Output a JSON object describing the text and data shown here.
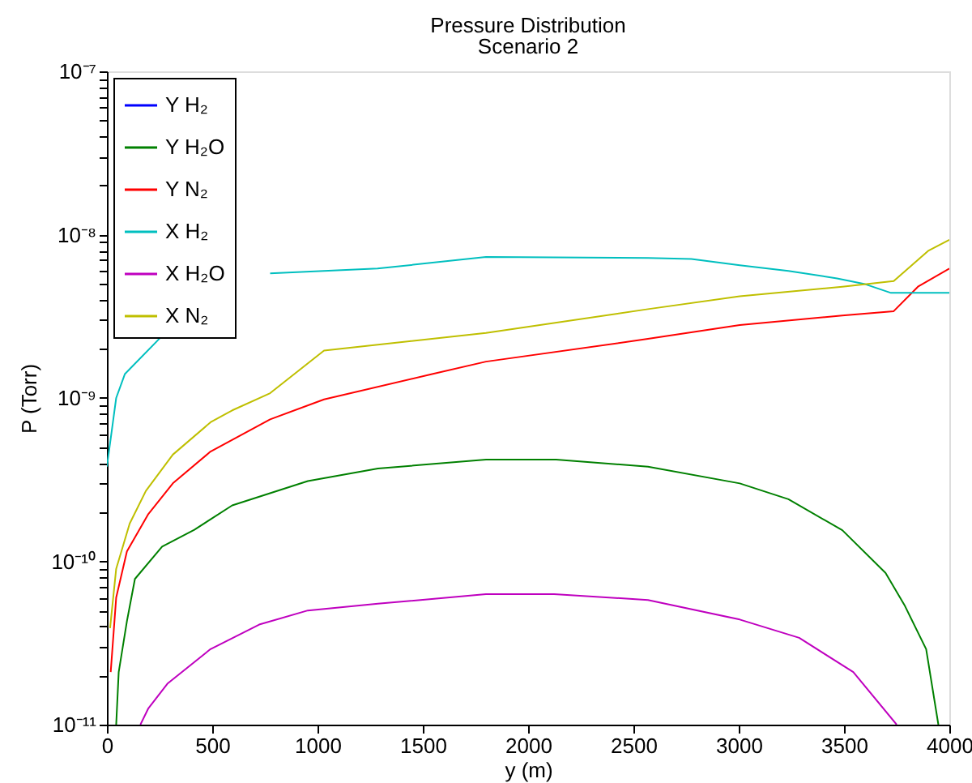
{
  "chart_data": {
    "type": "line",
    "title": "Pressure Distribution",
    "subtitle": "Scenario 2",
    "xlabel": "y (m)",
    "ylabel": "P (Torr)",
    "log": "y",
    "grid": false,
    "legend": "top left",
    "xlim": [
      0,
      4000
    ],
    "xticks": [
      0,
      500,
      1000,
      1500,
      2000,
      2500,
      3000,
      3500,
      4000
    ],
    "ylim": [
      1e-11,
      1e-07
    ],
    "yticks": [
      {
        "value": 1e-11,
        "label": "10⁻¹¹"
      },
      {
        "value": 2e-11,
        "label": null
      },
      {
        "value": 3e-11,
        "label": null
      },
      {
        "value": 4e-11,
        "label": null
      },
      {
        "value": 5e-11,
        "label": null
      },
      {
        "value": 6e-11,
        "label": null
      },
      {
        "value": 7e-11,
        "label": null
      },
      {
        "value": 8e-11,
        "label": null
      },
      {
        "value": 9e-11,
        "label": null
      },
      {
        "value": 1e-10,
        "label": "10⁻¹⁰"
      },
      {
        "value": 2e-10,
        "label": null
      },
      {
        "value": 3e-10,
        "label": null
      },
      {
        "value": 4e-10,
        "label": null
      },
      {
        "value": 5e-10,
        "label": null
      },
      {
        "value": 6e-10,
        "label": null
      },
      {
        "value": 7e-10,
        "label": null
      },
      {
        "value": 8e-10,
        "label": null
      },
      {
        "value": 9e-10,
        "label": null
      },
      {
        "value": 1e-09,
        "label": "10⁻⁹"
      },
      {
        "value": 2e-09,
        "label": null
      },
      {
        "value": 3e-09,
        "label": null
      },
      {
        "value": 4e-09,
        "label": null
      },
      {
        "value": 5e-09,
        "label": null
      },
      {
        "value": 6e-09,
        "label": null
      },
      {
        "value": 7e-09,
        "label": null
      },
      {
        "value": 8e-09,
        "label": null
      },
      {
        "value": 9e-09,
        "label": null
      },
      {
        "value": 1e-08,
        "label": "10⁻⁸"
      },
      {
        "value": 2e-08,
        "label": null
      },
      {
        "value": 3e-08,
        "label": null
      },
      {
        "value": 4e-08,
        "label": null
      },
      {
        "value": 5e-08,
        "label": null
      },
      {
        "value": 6e-08,
        "label": null
      },
      {
        "value": 7e-08,
        "label": null
      },
      {
        "value": 8e-08,
        "label": null
      },
      {
        "value": 9e-08,
        "label": null
      },
      {
        "value": 1e-07,
        "label": "10⁻⁷"
      }
    ],
    "series": [
      {
        "name": "Y H₂",
        "color": "#0000ff"
      },
      {
        "name": "Y H₂O",
        "color": "#008000",
        "x": [
          44,
          56,
          95,
          133,
          262,
          415,
          595,
          954,
          1287,
          1800,
          2133,
          2569,
          3005,
          3236,
          3492,
          3697,
          3787,
          3890,
          3948
        ],
        "values": [
          1e-11,
          2.1e-11,
          4.3e-11,
          7.8e-11,
          1.23e-10,
          1.56e-10,
          2.2e-10,
          3.1e-10,
          3.7e-10,
          4.2e-10,
          4.2e-10,
          3.8e-10,
          3e-10,
          2.4e-10,
          1.55e-10,
          8.5e-11,
          5.4e-11,
          2.9e-11,
          1e-11
        ]
      },
      {
        "name": "Y N₂",
        "color": "#ff0000",
        "x": [
          18,
          44,
          95,
          197,
          313,
          492,
          775,
          1031,
          1544,
          1800,
          2569,
          3005,
          3492,
          3736,
          3851,
          4000
        ],
        "values": [
          2.1e-11,
          6e-11,
          1.15e-10,
          1.95e-10,
          3e-10,
          4.7e-10,
          7.4e-10,
          9.8e-10,
          1.4e-09,
          1.67e-09,
          2.3e-09,
          2.8e-09,
          3.2e-09,
          3.4e-09,
          4.8e-09,
          6.2e-09
        ]
      },
      {
        "name": "X H₂",
        "color": "#00bfbf",
        "x": [
          0,
          44,
          85,
          262,
          390,
          518,
          775,
          1285,
          1800,
          2569,
          2775,
          3005,
          3236,
          3467,
          3595,
          3723,
          3900,
          4000
        ],
        "values": [
          3.8e-10,
          1e-09,
          1.4e-09,
          2.4e-09,
          null,
          null,
          5.8e-09,
          6.2e-09,
          7.3e-09,
          7.2e-09,
          7.1e-09,
          6.5e-09,
          6e-09,
          5.4e-09,
          5e-09,
          4.4e-09,
          4.4e-09,
          4.4e-09
        ]
      },
      {
        "name": "X H₂O",
        "color": "#bf00bf",
        "x": [
          159,
          197,
          287,
          492,
          723,
          954,
          1287,
          1800,
          2123,
          2569,
          3005,
          3287,
          3544,
          3750
        ],
        "values": [
          1e-11,
          1.26e-11,
          1.78e-11,
          2.9e-11,
          4.1e-11,
          5e-11,
          5.5e-11,
          6.3e-11,
          6.3e-11,
          5.8e-11,
          4.4e-11,
          3.4e-11,
          2.1e-11,
          1e-11
        ]
      },
      {
        "name": "X N₂",
        "color": "#bfbf00",
        "x": [
          15,
          44,
          108,
          185,
          313,
          492,
          595,
          775,
          1031,
          1800,
          2569,
          3005,
          3492,
          3736,
          3902,
          4000
        ],
        "values": [
          3.9e-11,
          9e-11,
          1.7e-10,
          2.7e-10,
          4.5e-10,
          7.1e-10,
          8.4e-10,
          1.07e-09,
          1.95e-09,
          2.5e-09,
          3.5e-09,
          4.2e-09,
          4.8e-09,
          5.2e-09,
          8e-09,
          9.3e-09
        ]
      }
    ]
  }
}
